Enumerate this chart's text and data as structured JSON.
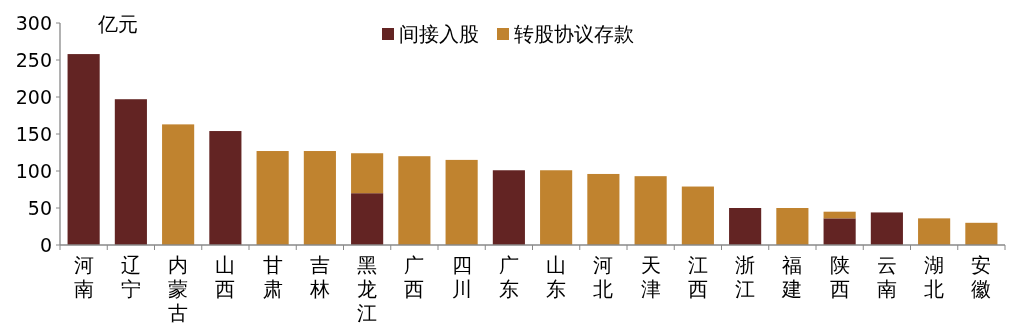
{
  "chart_data": {
    "type": "bar",
    "stacked": true,
    "ylabel": "亿元",
    "categories": [
      "河南",
      "辽宁",
      "内蒙古",
      "山西",
      "甘肃",
      "吉林",
      "黑龙江",
      "广西",
      "四川",
      "广东",
      "山东",
      "河北",
      "天津",
      "江西",
      "浙江",
      "福建",
      "陕西",
      "云南",
      "湖北",
      "安徽"
    ],
    "series": [
      {
        "name": "间接入股",
        "color": "#632423",
        "values": [
          258,
          197,
          null,
          154,
          null,
          null,
          70,
          null,
          null,
          101,
          null,
          null,
          null,
          null,
          50,
          null,
          36,
          44,
          null,
          null
        ]
      },
      {
        "name": "转股协议存款",
        "color": "#c0832f",
        "values": [
          null,
          null,
          163,
          null,
          127,
          127,
          54,
          120,
          115,
          null,
          101,
          96,
          93,
          79,
          null,
          50,
          9,
          null,
          36,
          30
        ]
      }
    ],
    "ylim": [
      0,
      300
    ],
    "yticks": [
      0,
      50,
      100,
      150,
      200,
      250,
      300
    ],
    "grid": false,
    "legend": "top"
  }
}
